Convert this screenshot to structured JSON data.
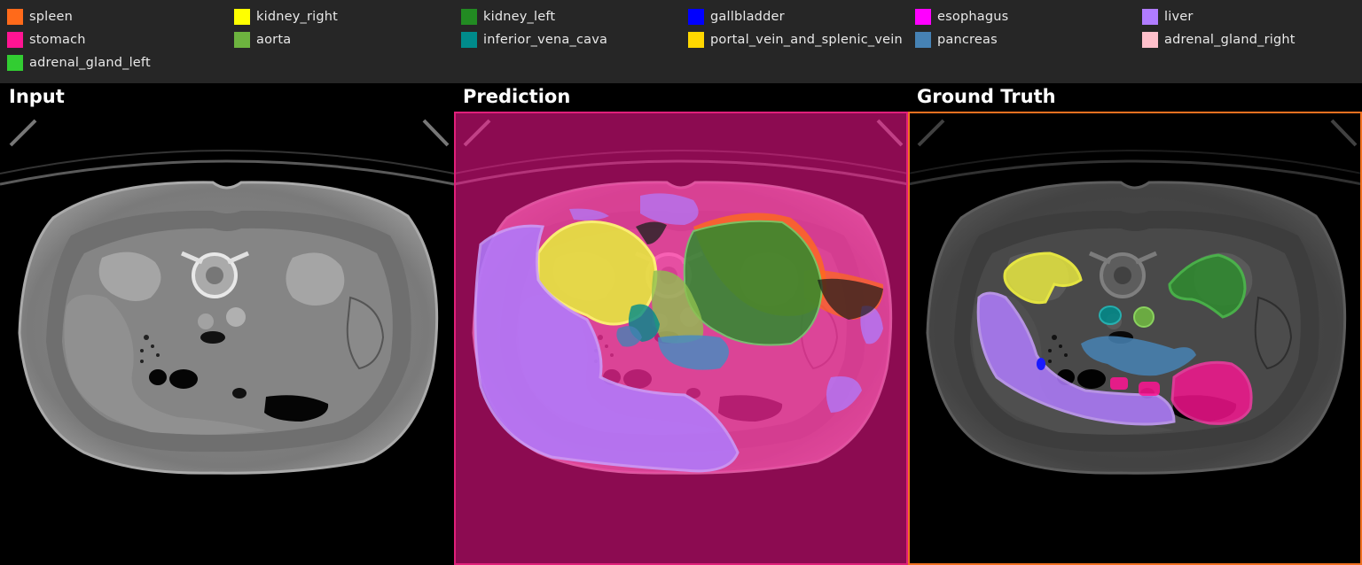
{
  "legend": {
    "items": [
      {
        "label": "spleen",
        "color": "#ff6a1a"
      },
      {
        "label": "kidney_right",
        "color": "#ffff00"
      },
      {
        "label": "kidney_left",
        "color": "#228b22"
      },
      {
        "label": "gallbladder",
        "color": "#0000ff"
      },
      {
        "label": "esophagus",
        "color": "#ff00ff"
      },
      {
        "label": "liver",
        "color": "#b07cff"
      },
      {
        "label": "stomach",
        "color": "#ff1493"
      },
      {
        "label": "aorta",
        "color": "#6db33f"
      },
      {
        "label": "inferior_vena_cava",
        "color": "#008b8b"
      },
      {
        "label": "portal_vein_and_splenic_vein",
        "color": "#ffd700"
      },
      {
        "label": "pancreas",
        "color": "#4682b4"
      },
      {
        "label": "adrenal_gland_right",
        "color": "#ffc0cb"
      },
      {
        "label": "adrenal_gland_left",
        "color": "#32cd32"
      }
    ]
  },
  "panels": {
    "input_title": "Input",
    "prediction_title": "Prediction",
    "ground_truth_title": "Ground Truth",
    "prediction_frame_color": "#e0207a",
    "ground_truth_frame_color": "#f07020"
  }
}
